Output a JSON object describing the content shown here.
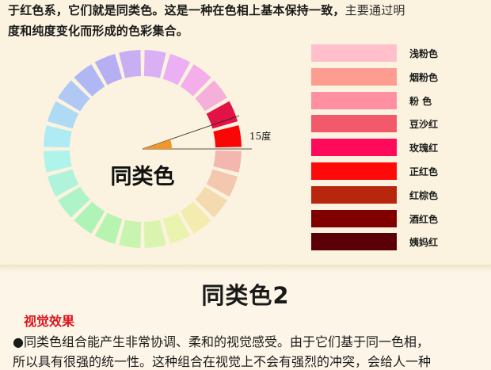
{
  "intro": {
    "line1_bold": "于红色系，它们就是同类色。这是一种在色相上基本保持一致，",
    "line1_light": "主要通过明",
    "line2": "度和纯度变化而形成的色彩集合。"
  },
  "wheel": {
    "center_label": "同类色",
    "angle_label": "15度",
    "segments": 24,
    "arrow_color": "#f0962a"
  },
  "swatches": [
    {
      "label": "浅粉色",
      "color": "#ffc0cc"
    },
    {
      "label": "烟粉色",
      "color": "#ff9c92"
    },
    {
      "label": "粉 色",
      "color": "#ff90a2"
    },
    {
      "label": "豆沙红",
      "color": "#f25a6c"
    },
    {
      "label": "玫瑰红",
      "color": "#ff0a5a"
    },
    {
      "label": "正红色",
      "color": "#ff0a0a"
    },
    {
      "label": "红棕色",
      "color": "#b8260e"
    },
    {
      "label": "酒红色",
      "color": "#800000"
    },
    {
      "label": "姨妈红",
      "color": "#5c0008"
    }
  ],
  "section": {
    "title": "同类色2",
    "sub_heading": "视觉效果",
    "body_line1": "●同类色组合能产生非常协调、柔和的视觉感受。由于它们基于同一色相，",
    "body_line2": "所以具有很强的统一性。这种组合在视觉上不会有强烈的冲突，会给人一种"
  }
}
